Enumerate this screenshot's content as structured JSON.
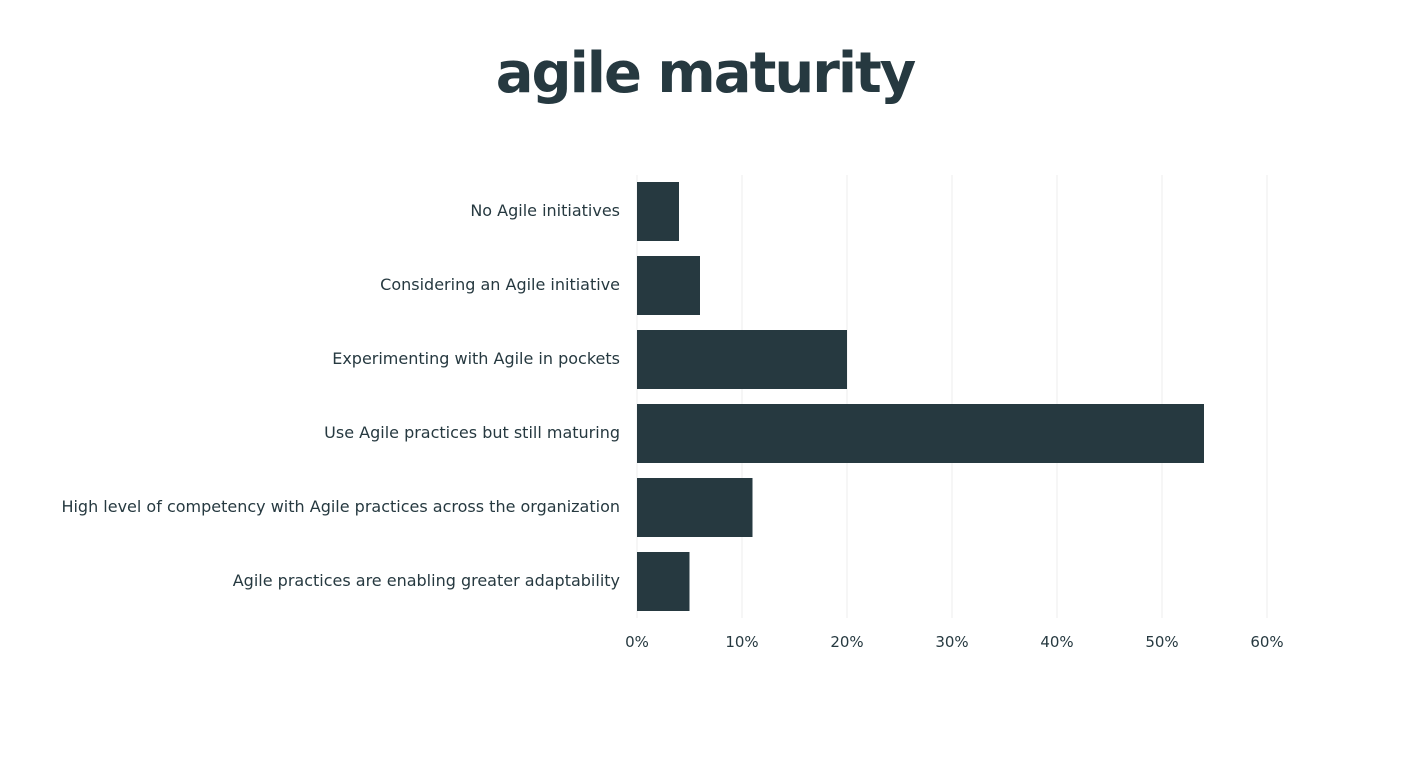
{
  "chart_data": {
    "type": "bar",
    "orientation": "horizontal",
    "title": "agile maturity",
    "categories": [
      "No Agile initiatives",
      "Considering an Agile initiative",
      "Experimenting with Agile in pockets",
      "Use Agile practices but still maturing",
      "High level of competency with Agile practices across the organization",
      "Agile practices are enabling greater adaptability"
    ],
    "values": [
      4,
      6,
      20,
      54,
      11,
      5
    ],
    "xlim": [
      0,
      60
    ],
    "xticks": [
      0,
      10,
      20,
      30,
      40,
      50,
      60
    ],
    "tick_labels": [
      "0%",
      "10%",
      "20%",
      "30%",
      "40%",
      "50%",
      "60%"
    ],
    "xlabel": "",
    "ylabel": "",
    "grid": true,
    "bar_color": "#263940",
    "grid_color": "#ececec"
  }
}
